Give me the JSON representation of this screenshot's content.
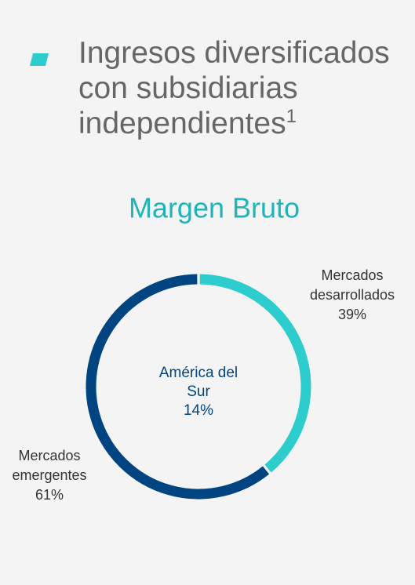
{
  "chart_data": {
    "type": "donut",
    "heading": "Ingresos diversificados con subsidiarias independientes",
    "footnote_mark": "1",
    "title": "Margen Bruto",
    "categories": [
      "Mercados desarrollados",
      "Mercados emergentes"
    ],
    "values": [
      39,
      61
    ],
    "value_labels": [
      "39%",
      "61%"
    ],
    "colors": [
      "#2dcccd",
      "#004481"
    ],
    "center_text": [
      "América del Sur",
      "14%"
    ]
  }
}
